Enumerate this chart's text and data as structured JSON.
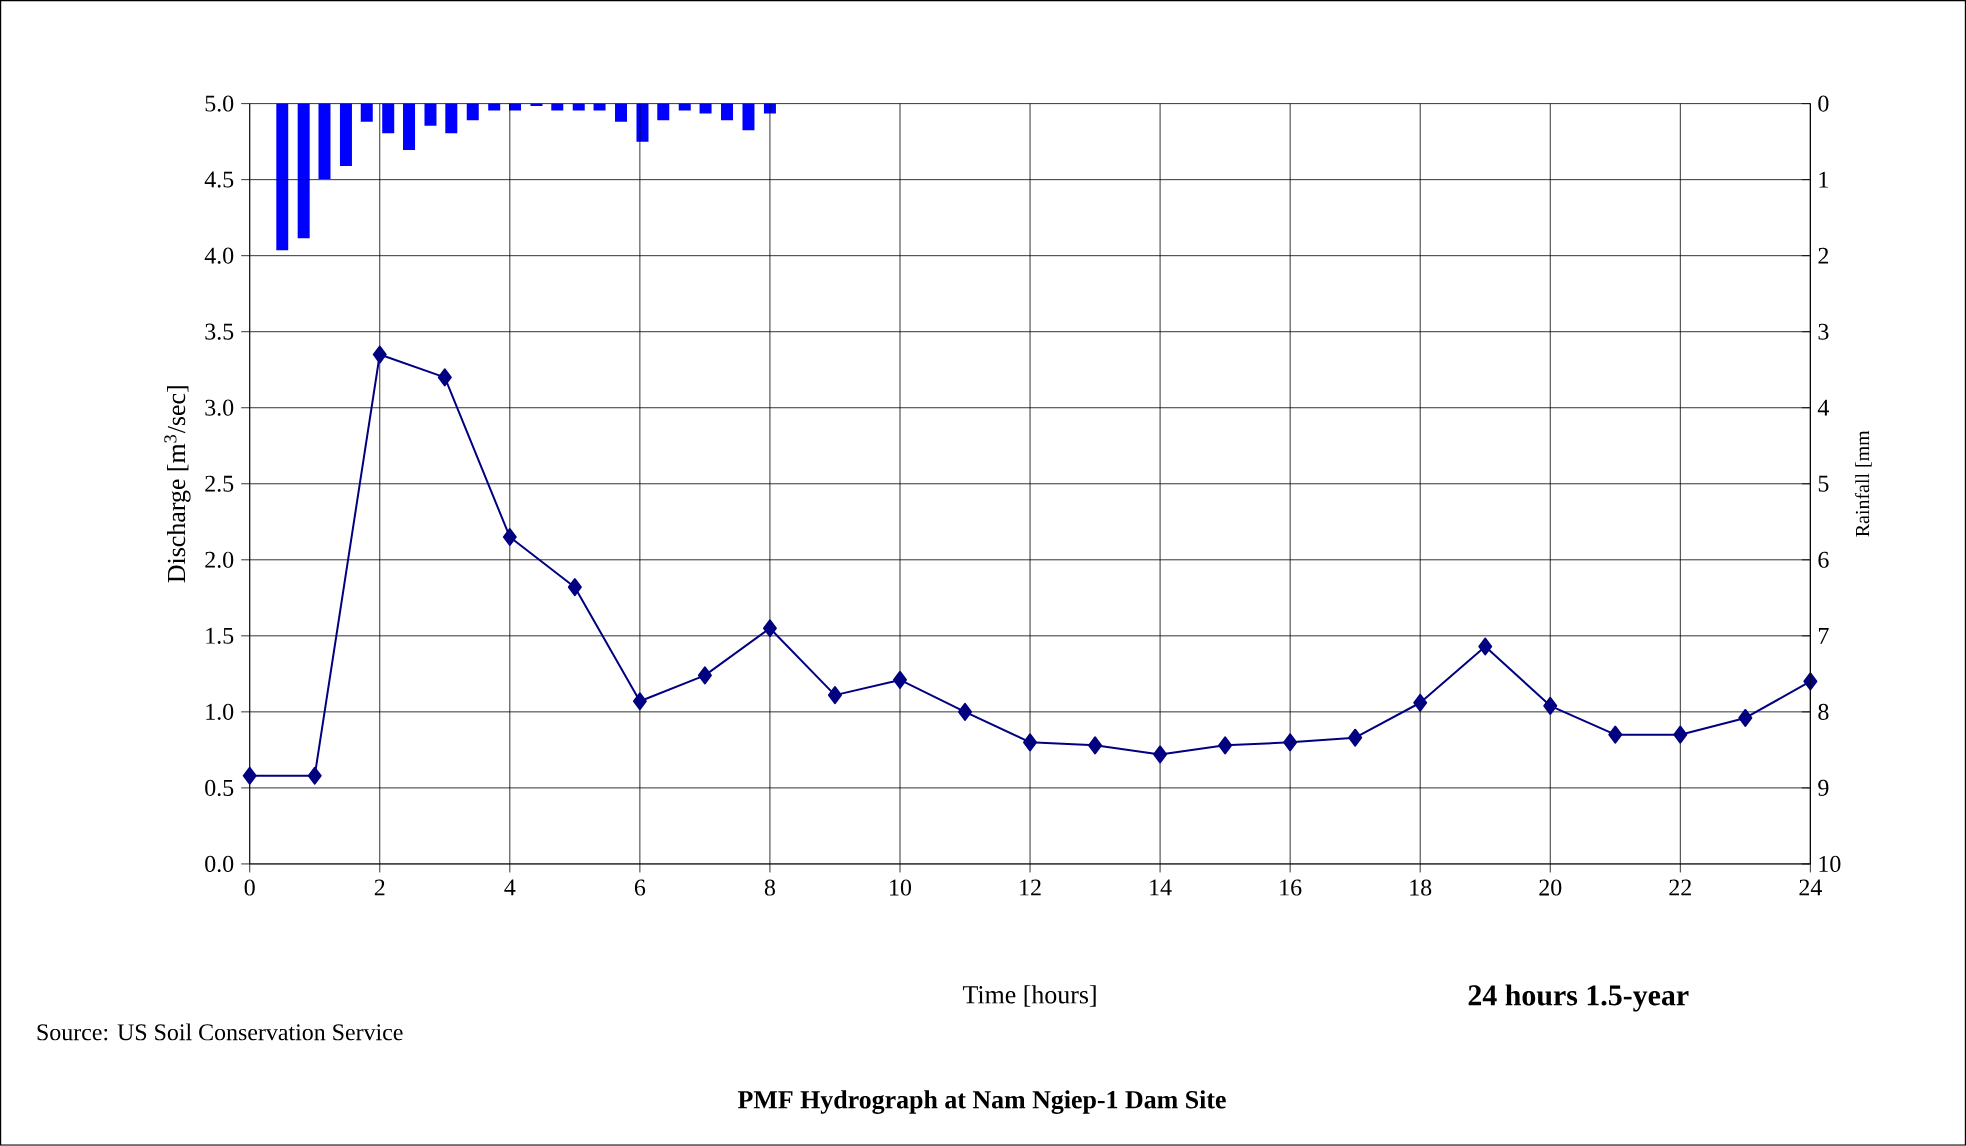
{
  "chart_data": {
    "type": "line",
    "title": "PMF Hydrograph at Nam Ngiep-1 Dam Site",
    "xlabel": "Time [hours]",
    "ylabel": "Discharge [m$^{3}$/sec]",
    "y2label": "Rainfall [mm",
    "annotations": [
      "24 hours 1.5-year",
      "Source: US Soil Conservation Service"
    ],
    "x": [
      0,
      1,
      2,
      3,
      4,
      5,
      6,
      7,
      8,
      9,
      10,
      11,
      12,
      13,
      14,
      15,
      16,
      17,
      18,
      19,
      20,
      21,
      22,
      23,
      24
    ],
    "series": [
      {
        "color": "#000080",
        "values": [
          0.58,
          0.58,
          3.35,
          3.2,
          2.15,
          1.82,
          1.07,
          1.24,
          1.55,
          1.11,
          1.21,
          1.0,
          0.8,
          0.78,
          0.72,
          0.78,
          0.8,
          0.83,
          1.06,
          1.43,
          1.04,
          0.85,
          0.85,
          0.96,
          1.2
        ]
      },
      {
        "type": "bar",
        "axis": "y2",
        "color": "#0000ff",
        "x": [
          0.5,
          0.83,
          1.15,
          1.48,
          1.8,
          2.13,
          2.45,
          2.78,
          3.1,
          3.43,
          3.76,
          4.08,
          4.41,
          4.73,
          5.06,
          5.38,
          5.71,
          6.04,
          6.36,
          6.69,
          7.01,
          7.34,
          7.67,
          8.0
        ],
        "values": [
          1.93,
          1.77,
          0.99,
          0.82,
          0.24,
          0.39,
          0.61,
          0.29,
          0.39,
          0.22,
          0.09,
          0.09,
          0.03,
          0.09,
          0.09,
          0.09,
          0.24,
          0.5,
          0.22,
          0.09,
          0.13,
          0.22,
          0.35,
          0.13
        ]
      }
    ],
    "xlim": [
      0,
      24
    ],
    "xticks": [
      0,
      2,
      4,
      6,
      8,
      10,
      12,
      14,
      16,
      18,
      20,
      22,
      24
    ],
    "ylim": [
      0,
      5
    ],
    "yticks": [
      {
        "value": 0,
        "label": "0.0"
      },
      {
        "value": 0.5,
        "label": "0.5"
      },
      {
        "value": 1,
        "label": "1.0"
      },
      {
        "value": 1.5,
        "label": "1.5"
      },
      {
        "value": 2,
        "label": "2.0"
      },
      {
        "value": 2.5,
        "label": "2.5"
      },
      {
        "value": 3,
        "label": "3.0"
      },
      {
        "value": 3.5,
        "label": "3.5"
      },
      {
        "value": 4,
        "label": "4.0"
      },
      {
        "value": 4.5,
        "label": "4.5"
      },
      {
        "value": 5,
        "label": "5.0"
      }
    ],
    "y2lim": [
      10,
      0
    ],
    "y2ticks": [
      0,
      1,
      2,
      3,
      4,
      5,
      6,
      7,
      8,
      9,
      10
    ],
    "grid": true,
    "marker": "diamond",
    "line_style": "solid"
  }
}
